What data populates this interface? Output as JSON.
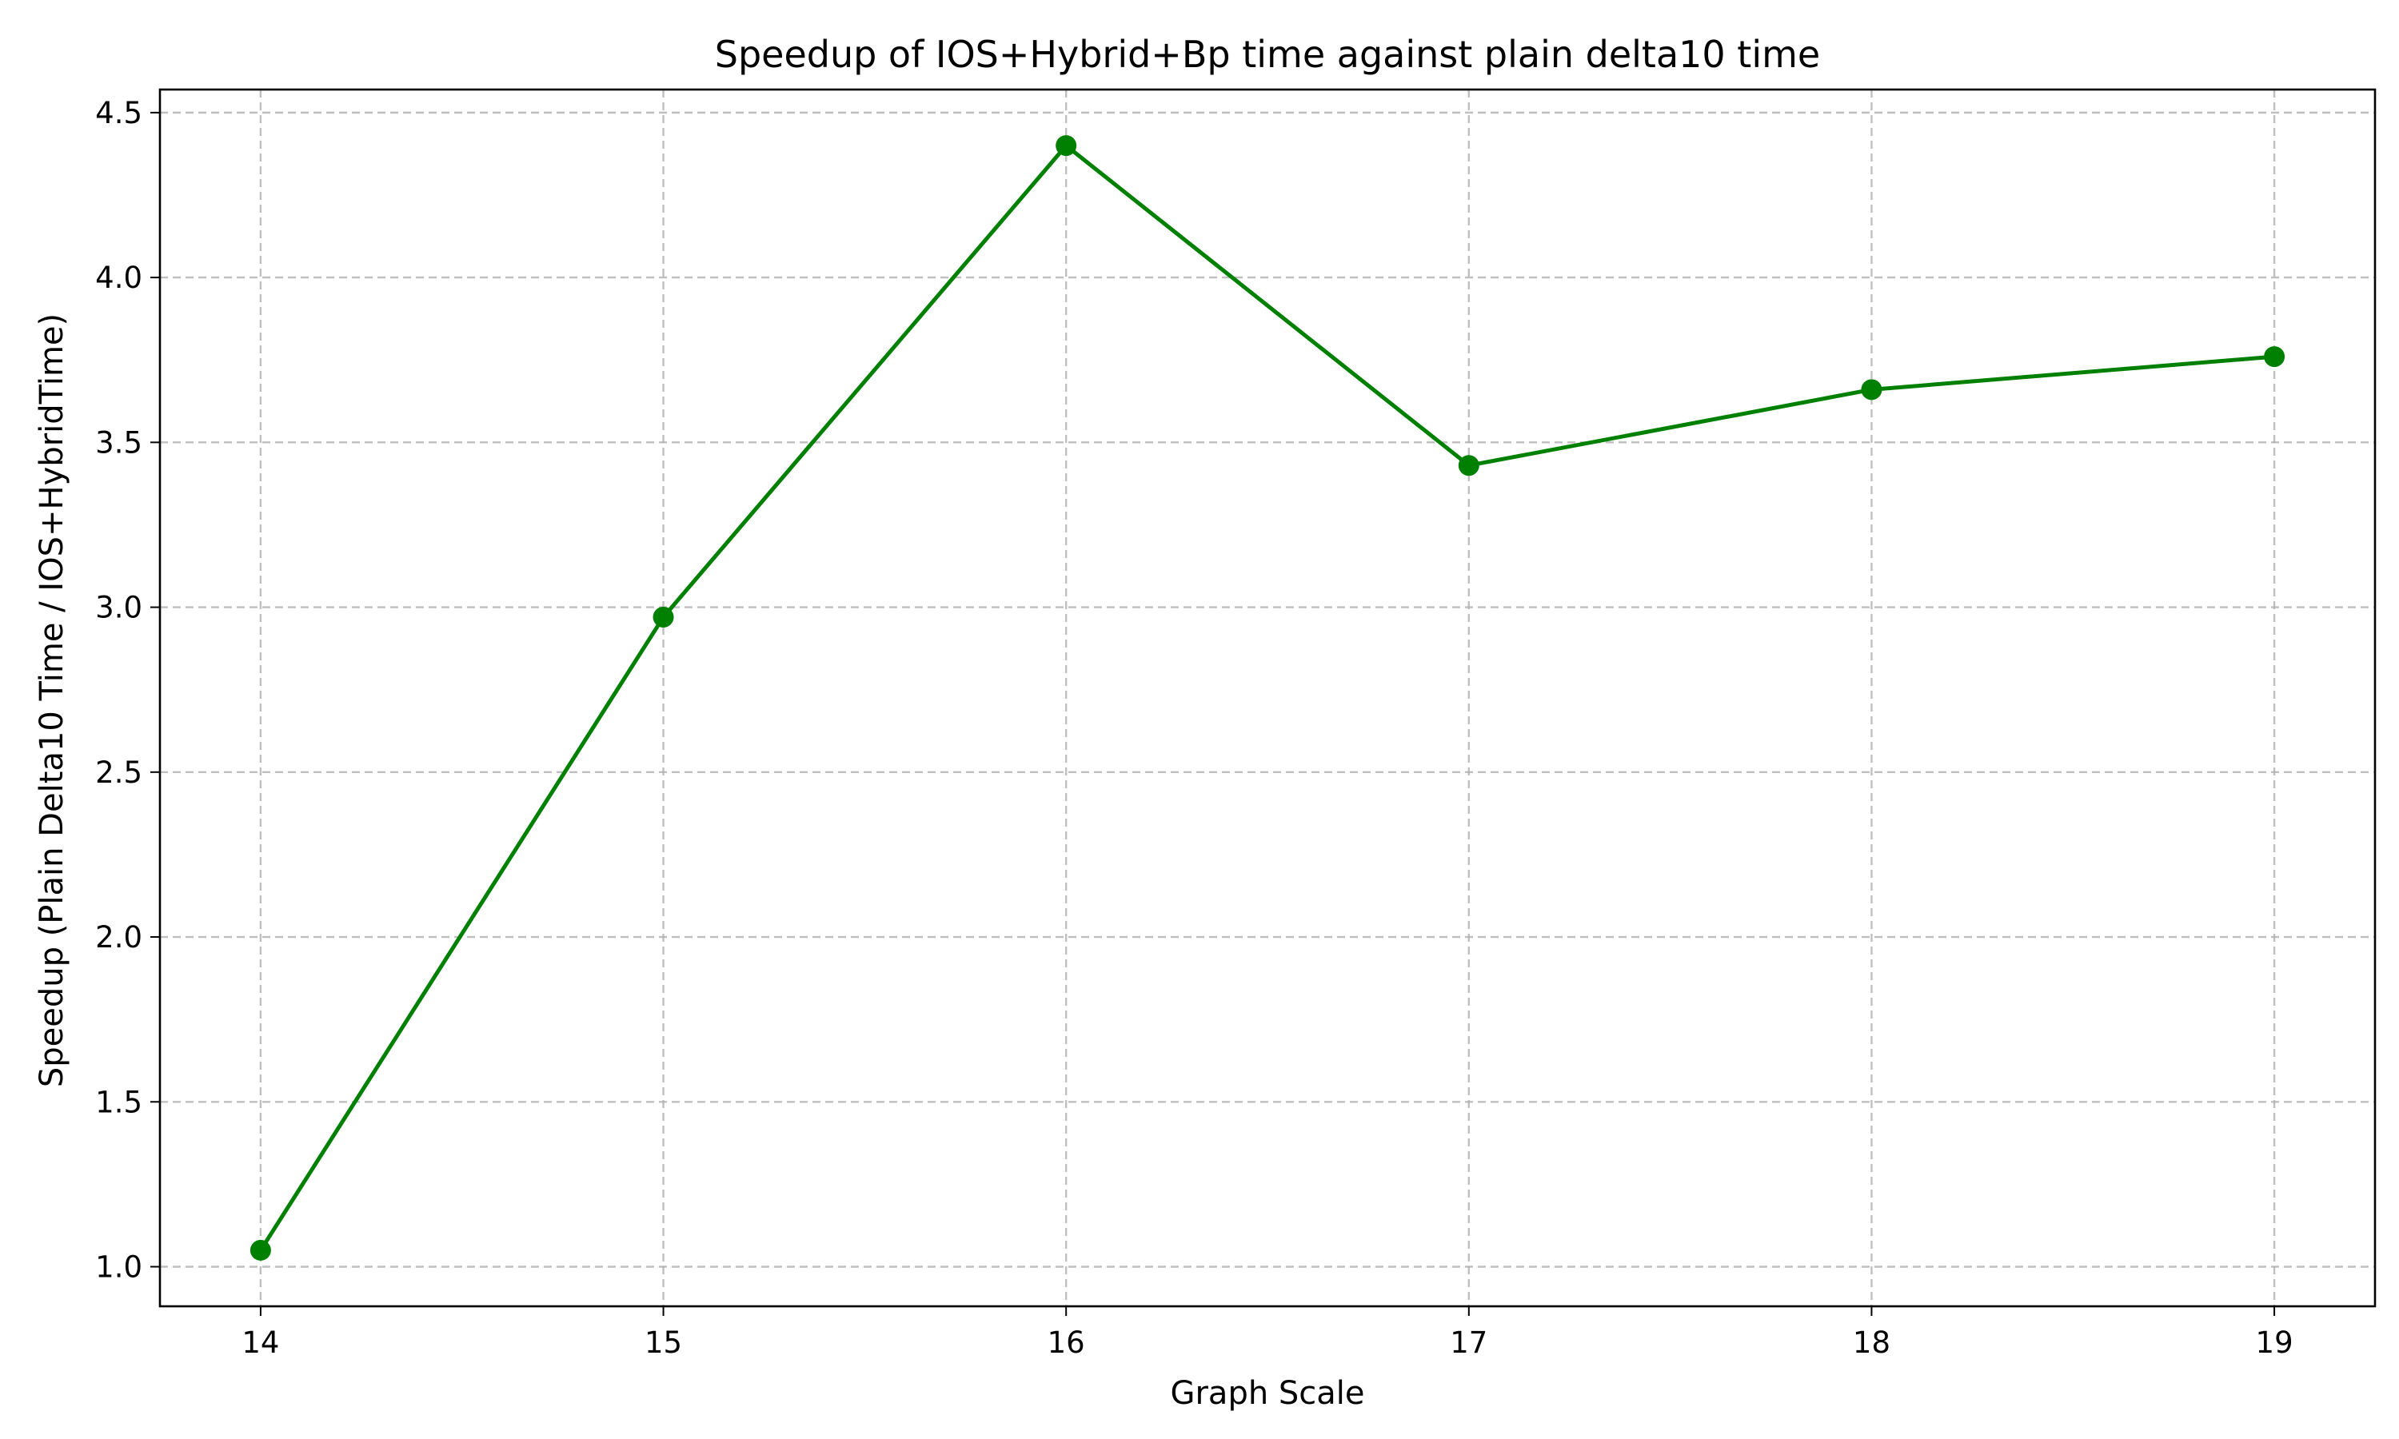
{
  "chart_data": {
    "type": "line",
    "title": "Speedup of IOS+Hybrid+Bp time against plain delta10 time",
    "xlabel": "Graph Scale",
    "ylabel": "Speedup (Plain Delta10 Time / IOS+HybridTime)",
    "x": [
      14,
      15,
      16,
      17,
      18,
      19
    ],
    "series": [
      {
        "values": [
          1.05,
          2.97,
          4.4,
          3.43,
          3.66,
          3.76
        ],
        "color": "#008000",
        "marker": "circle"
      }
    ],
    "xlim": [
      13.75,
      19.25
    ],
    "ylim": [
      0.88,
      4.57
    ],
    "xticks": [
      "14",
      "15",
      "16",
      "17",
      "18",
      "19"
    ],
    "yticks": [
      "1.0",
      "1.5",
      "2.0",
      "2.5",
      "3.0",
      "3.5",
      "4.0",
      "4.5"
    ],
    "grid": true,
    "legend": "none"
  }
}
